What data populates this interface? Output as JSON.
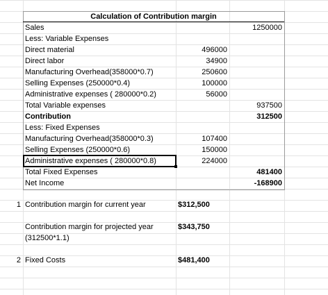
{
  "sheet": {
    "title": "Calculation of Contribution margin",
    "rows": [
      {
        "label": "Sales",
        "b": "",
        "c": "1250000"
      },
      {
        "label": "Less: Variable Expenses",
        "b": "",
        "c": ""
      },
      {
        "label": "Direct material",
        "b": "496000",
        "c": ""
      },
      {
        "label": "Direct labor",
        "b": "34900",
        "c": ""
      },
      {
        "label": "Manufacturing Overhead(358000*0.7)",
        "b": "250600",
        "c": ""
      },
      {
        "label": "Selling Expenses (250000*0.4)",
        "b": "100000",
        "c": ""
      },
      {
        "label": "Administrative expenses ( 280000*0.2)",
        "b": "56000",
        "c": ""
      },
      {
        "label": "Total Variable expenses",
        "b": "",
        "c": "937500"
      },
      {
        "label": "Contribution",
        "b": "",
        "c": "312500"
      },
      {
        "label": "Less: Fixed Expenses",
        "b": "",
        "c": ""
      },
      {
        "label": "Manufacturing Overhead(358000*0.3)",
        "b": "107400",
        "c": ""
      },
      {
        "label": "Selling Expenses (250000*0.6)",
        "b": "150000",
        "c": ""
      },
      {
        "label": "Administrative expenses ( 280000*0.8)",
        "b": "224000",
        "c": ""
      },
      {
        "label": "Total Fixed Expenses",
        "b": "",
        "c": "481400"
      },
      {
        "label": "Net Income",
        "b": "",
        "c": "-168900"
      }
    ]
  },
  "answers": {
    "q1": {
      "num": "1",
      "label": "Contribution margin for current year",
      "value": "$312,500"
    },
    "q1b": {
      "label": "Contribution margin for projected year",
      "label2": "(312500*1.1)",
      "value": "$343,750"
    },
    "q2": {
      "num": "2",
      "label": "Fixed Costs",
      "value": "$481,400"
    }
  }
}
